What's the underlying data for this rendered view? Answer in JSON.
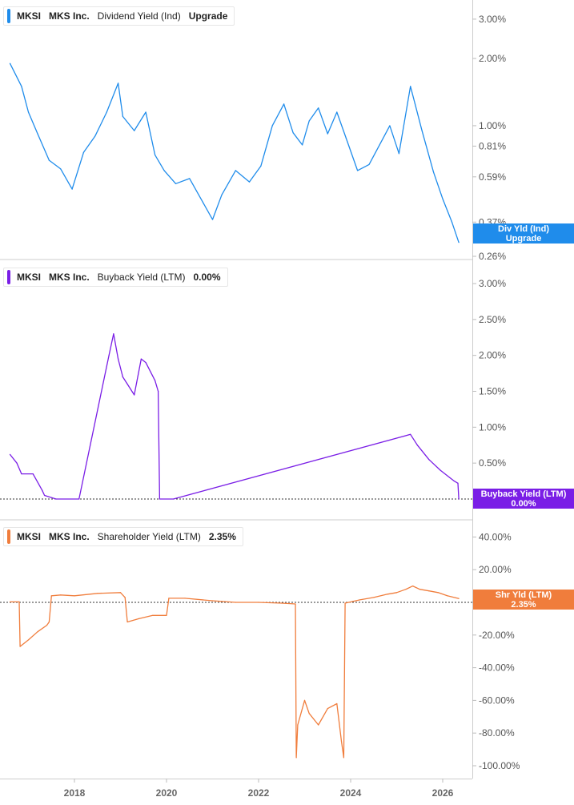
{
  "colors": {
    "dividend": "#1f8ceb",
    "buyback": "#7a1ee6",
    "shareholder": "#f07d3c",
    "axis_text": "#555555",
    "divider": "#cccccc"
  },
  "x_axis": {
    "ticks": [
      "2018",
      "2020",
      "2022",
      "2024",
      "2026"
    ]
  },
  "panels": [
    {
      "ticker": "MKSI",
      "company": "MKS Inc.",
      "metric": "Dividend Yield (Ind)",
      "value": "Upgrade",
      "tag_line1": "Div Yld (Ind)",
      "tag_line2": "Upgrade",
      "y_ticks": [
        "3.00%",
        "2.00%",
        "1.00%",
        "0.81%",
        "0.59%",
        "0.37%",
        "0.26%"
      ],
      "y_scale": "log",
      "zero_line": false
    },
    {
      "ticker": "MKSI",
      "company": "MKS Inc.",
      "metric": "Buyback Yield (LTM)",
      "value": "0.00%",
      "tag_line1": "Buyback Yield (LTM)",
      "tag_line2": "0.00%",
      "y_ticks": [
        "3.00%",
        "2.50%",
        "2.00%",
        "1.50%",
        "1.00%",
        "0.50%"
      ],
      "y_scale": "linear",
      "zero_line": true
    },
    {
      "ticker": "MKSI",
      "company": "MKS Inc.",
      "metric": "Shareholder Yield (LTM)",
      "value": "2.35%",
      "tag_line1": "Shr Yld (LTM)",
      "tag_line2": "2.35%",
      "y_ticks": [
        "40.00%",
        "20.00%",
        "0.00%",
        "-20.00%",
        "-40.00%",
        "-60.00%",
        "-80.00%",
        "-100.00%"
      ],
      "y_scale": "linear",
      "zero_line": true
    }
  ],
  "chart_data": [
    {
      "type": "line",
      "title": "MKSI MKS Inc. Dividend Yield (Ind)",
      "y_scale": "log",
      "ylim": [
        0.25,
        3.5
      ],
      "series": [
        {
          "name": "Dividend Yield (Ind)",
          "x": [
            2016.6,
            2016.85,
            2017.0,
            2017.2,
            2017.45,
            2017.7,
            2017.95,
            2018.2,
            2018.45,
            2018.7,
            2018.95,
            2019.05,
            2019.3,
            2019.55,
            2019.75,
            2019.95,
            2020.2,
            2020.5,
            2020.8,
            2021.0,
            2021.2,
            2021.5,
            2021.8,
            2022.05,
            2022.3,
            2022.55,
            2022.75,
            2022.95,
            2023.1,
            2023.3,
            2023.5,
            2023.7,
            2023.9,
            2024.15,
            2024.4,
            2024.6,
            2024.85,
            2025.05,
            2025.3,
            2025.4,
            2025.55,
            2025.8,
            2026.0,
            2026.2,
            2026.35
          ],
          "y": [
            1.9,
            1.5,
            1.15,
            0.92,
            0.7,
            0.64,
            0.52,
            0.76,
            0.9,
            1.15,
            1.55,
            1.1,
            0.95,
            1.15,
            0.74,
            0.63,
            0.55,
            0.58,
            0.45,
            0.38,
            0.49,
            0.63,
            0.56,
            0.66,
            1.0,
            1.25,
            0.93,
            0.82,
            1.05,
            1.2,
            0.92,
            1.15,
            0.88,
            0.63,
            0.67,
            0.8,
            1.0,
            0.75,
            1.5,
            1.25,
            0.95,
            0.62,
            0.47,
            0.37,
            0.3
          ]
        }
      ]
    },
    {
      "type": "line",
      "title": "MKSI MKS Inc. Buyback Yield (LTM)",
      "ylim": [
        0,
        3.0
      ],
      "series": [
        {
          "name": "Buyback Yield (LTM)",
          "x": [
            2016.6,
            2016.75,
            2016.85,
            2017.1,
            2017.3,
            2017.35,
            2017.6,
            2018.1,
            2018.75,
            2018.85,
            2018.95,
            2019.05,
            2019.15,
            2019.3,
            2019.45,
            2019.55,
            2019.75,
            2019.82,
            2019.85,
            2020.15,
            2025.3,
            2025.45,
            2025.7,
            2025.95,
            2026.15,
            2026.25,
            2026.33,
            2026.35
          ],
          "y": [
            0.62,
            0.5,
            0.35,
            0.35,
            0.12,
            0.05,
            0.0,
            0.0,
            2.0,
            2.3,
            1.95,
            1.7,
            1.6,
            1.45,
            1.95,
            1.9,
            1.65,
            1.5,
            0.0,
            0.0,
            0.9,
            0.75,
            0.55,
            0.4,
            0.3,
            0.25,
            0.22,
            0.0
          ]
        }
      ]
    },
    {
      "type": "line",
      "title": "MKSI MKS Inc. Shareholder Yield (LTM)",
      "ylim": [
        -100,
        45
      ],
      "series": [
        {
          "name": "Shareholder Yield (LTM)",
          "x": [
            2016.6,
            2016.8,
            2016.82,
            2017.0,
            2017.2,
            2017.4,
            2017.45,
            2017.5,
            2017.7,
            2018.0,
            2018.5,
            2019.0,
            2019.1,
            2019.15,
            2019.4,
            2019.7,
            2020.0,
            2020.05,
            2020.4,
            2021.0,
            2021.5,
            2022.0,
            2022.5,
            2022.8,
            2022.82,
            2022.85,
            2023.0,
            2023.1,
            2023.3,
            2023.5,
            2023.7,
            2023.8,
            2023.85,
            2023.88,
            2024.2,
            2024.5,
            2024.8,
            2025.0,
            2025.2,
            2025.35,
            2025.5,
            2025.7,
            2025.9,
            2026.1,
            2026.35
          ],
          "y": [
            0.3,
            0.3,
            -27,
            -23,
            -18,
            -14,
            -12,
            4,
            4.5,
            4,
            5.5,
            6,
            3,
            -12,
            -10,
            -8,
            -8,
            2.5,
            2.5,
            1,
            0,
            0,
            -0.5,
            -1,
            -95,
            -75,
            -60,
            -68,
            -75,
            -65,
            -62,
            -85,
            -95,
            -0.5,
            1.5,
            3,
            5,
            6,
            8,
            10,
            8,
            7,
            6,
            4,
            2.35
          ]
        }
      ]
    }
  ]
}
